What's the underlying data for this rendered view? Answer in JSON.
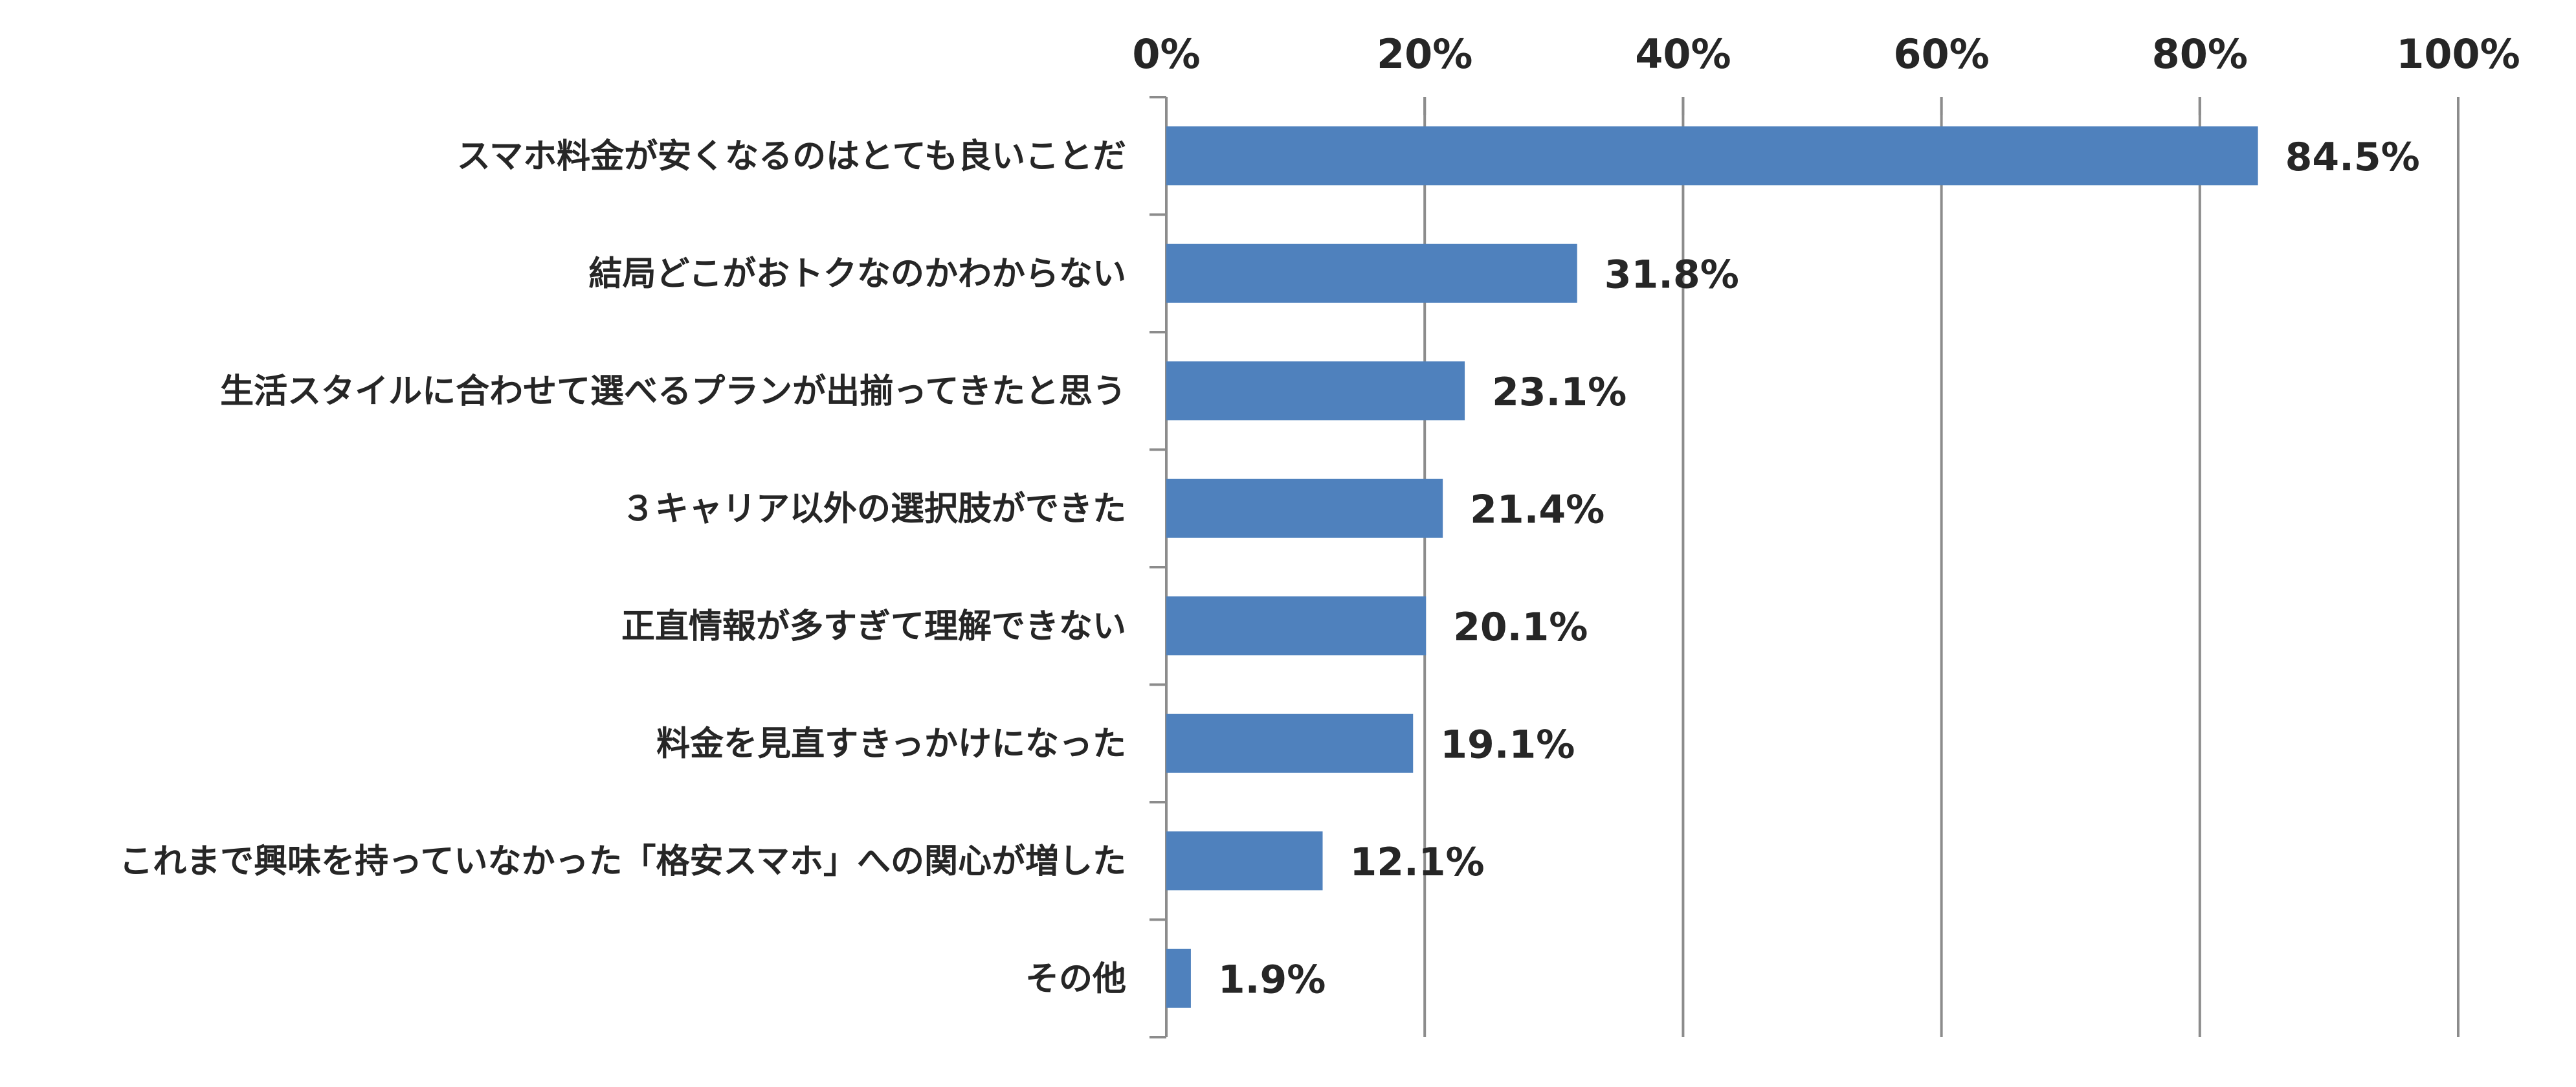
{
  "chart_data": {
    "type": "bar",
    "orientation": "horizontal",
    "categories": [
      "スマホ料金が安くなるのはとても良いことだ",
      "結局どこがおトクなのかわからない",
      "生活スタイルに合わせて選べるプランが出揃ってきたと思う",
      "３キャリア以外の選択肢ができた",
      "正直情報が多すぎて理解できない",
      "料金を見直すきっかけになった",
      "これまで興味を持っていなかった「格安スマホ」への関心が増した",
      "その他"
    ],
    "values": [
      84.5,
      31.8,
      23.1,
      21.4,
      20.1,
      19.1,
      12.1,
      1.9
    ],
    "value_labels": [
      "84.5%",
      "31.8%",
      "23.1%",
      "21.4%",
      "20.1%",
      "19.1%",
      "12.1%",
      "1.9%"
    ],
    "xlim": [
      0,
      100
    ],
    "x_ticks": [
      0,
      20,
      40,
      60,
      80,
      100
    ],
    "x_tick_labels": [
      "0%",
      "20%",
      "40%",
      "60%",
      "80%",
      "100%"
    ],
    "x_axis_position": "top",
    "grid": true,
    "bar_color": "#4F81BD",
    "grid_color": "#8C8C8C",
    "title": "",
    "xlabel": "",
    "ylabel": ""
  }
}
